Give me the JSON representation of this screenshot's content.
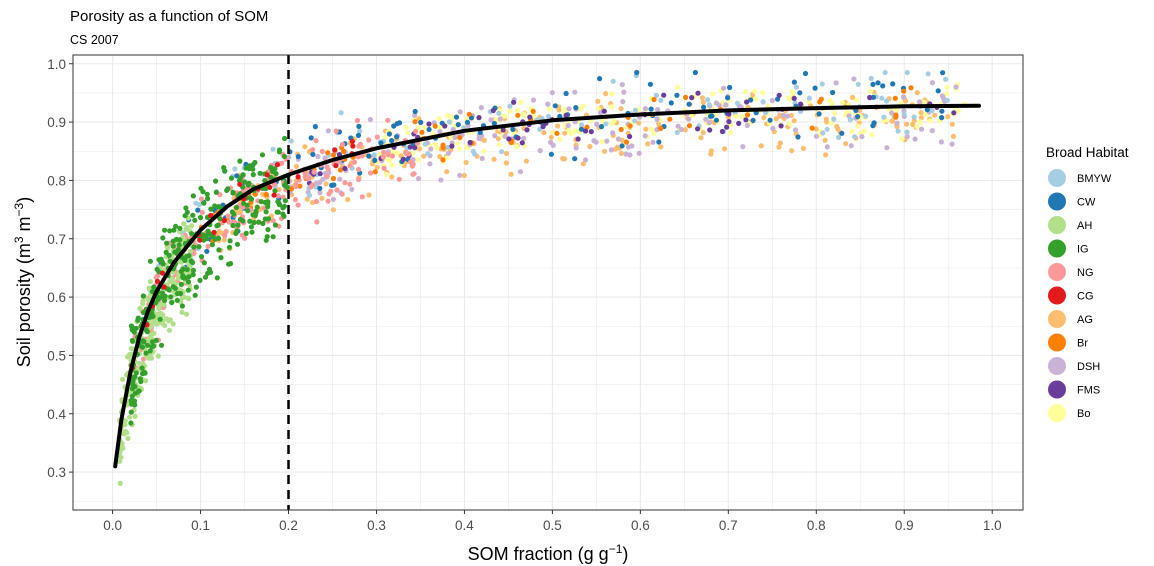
{
  "chart_data": {
    "type": "scatter",
    "title": "Porosity as a function of SOM",
    "subtitle": "CS 2007",
    "xlabel": "SOM fraction",
    "xlabel_units": {
      "open": " (g g",
      "sup": "−1",
      "close": ")"
    },
    "ylabel": "Soil porosity",
    "ylabel_units": {
      "open": " (m",
      "sup1": "3",
      "mid": " m",
      "sup2": "−3",
      "close": ")"
    },
    "xlim": [
      -0.045,
      1.035
    ],
    "ylim": [
      0.235,
      1.015
    ],
    "x_ticks": [
      "0.0",
      "0.1",
      "0.2",
      "0.3",
      "0.4",
      "0.5",
      "0.6",
      "0.7",
      "0.8",
      "0.9",
      "1.0"
    ],
    "y_ticks": [
      "0.3",
      "0.4",
      "0.5",
      "0.6",
      "0.7",
      "0.8",
      "0.9",
      "1.0"
    ],
    "grid": true,
    "legend": {
      "title": "Broad Habitat",
      "position": "right",
      "entries": [
        {
          "label": "BMYW",
          "color": "#a6cee3"
        },
        {
          "label": "CW",
          "color": "#1f78b4"
        },
        {
          "label": "AH",
          "color": "#b2df8a"
        },
        {
          "label": "IG",
          "color": "#33a02c"
        },
        {
          "label": "NG",
          "color": "#fb9a99"
        },
        {
          "label": "CG",
          "color": "#e31a1c"
        },
        {
          "label": "AG",
          "color": "#fdbf6f"
        },
        {
          "label": "Br",
          "color": "#ff7f00"
        },
        {
          "label": "DSH",
          "color": "#cab2d6"
        },
        {
          "label": "FMS",
          "color": "#6a3d9a"
        },
        {
          "label": "Bo",
          "color": "#ffff99"
        }
      ]
    },
    "fit_curve": {
      "style": "solid black",
      "x": [
        0.003,
        0.01,
        0.02,
        0.03,
        0.04,
        0.05,
        0.07,
        0.1,
        0.13,
        0.16,
        0.2,
        0.25,
        0.3,
        0.4,
        0.5,
        0.6,
        0.7,
        0.8,
        0.9,
        0.985
      ],
      "y": [
        0.31,
        0.39,
        0.47,
        0.53,
        0.575,
        0.61,
        0.66,
        0.715,
        0.755,
        0.785,
        0.81,
        0.835,
        0.855,
        0.885,
        0.903,
        0.913,
        0.92,
        0.924,
        0.927,
        0.928
      ]
    },
    "reference_line": {
      "x": 0.2,
      "style": "dashed black"
    },
    "point_groups": [
      {
        "habitat": "AH",
        "n": 260,
        "x_range": [
          0.008,
          0.09
        ],
        "y_offset_range": [
          -0.12,
          0.06
        ]
      },
      {
        "habitat": "IG",
        "n": 320,
        "x_range": [
          0.02,
          0.2
        ],
        "y_offset_range": [
          -0.12,
          0.09
        ]
      },
      {
        "habitat": "NG",
        "n": 200,
        "x_range": [
          0.02,
          0.35
        ],
        "y_offset_range": [
          -0.1,
          0.06
        ]
      },
      {
        "habitat": "CW",
        "n": 130,
        "x_range": [
          0.04,
          0.96
        ],
        "y_offset_range": [
          -0.07,
          0.08
        ]
      },
      {
        "habitat": "BMYW",
        "n": 110,
        "x_range": [
          0.04,
          0.96
        ],
        "y_offset_range": [
          -0.06,
          0.08
        ]
      },
      {
        "habitat": "AG",
        "n": 250,
        "x_range": [
          0.12,
          0.96
        ],
        "y_offset_range": [
          -0.09,
          0.05
        ]
      },
      {
        "habitat": "DSH",
        "n": 160,
        "x_range": [
          0.2,
          0.96
        ],
        "y_offset_range": [
          -0.09,
          0.06
        ]
      },
      {
        "habitat": "Bo",
        "n": 220,
        "x_range": [
          0.3,
          0.97
        ],
        "y_offset_range": [
          -0.06,
          0.05
        ]
      },
      {
        "habitat": "Br",
        "n": 70,
        "x_range": [
          0.1,
          0.95
        ],
        "y_offset_range": [
          -0.05,
          0.04
        ]
      },
      {
        "habitat": "FMS",
        "n": 60,
        "x_range": [
          0.22,
          0.96
        ],
        "y_offset_range": [
          -0.05,
          0.05
        ]
      },
      {
        "habitat": "CG",
        "n": 25,
        "x_range": [
          0.02,
          0.3
        ],
        "y_offset_range": [
          -0.05,
          0.04
        ]
      }
    ]
  }
}
